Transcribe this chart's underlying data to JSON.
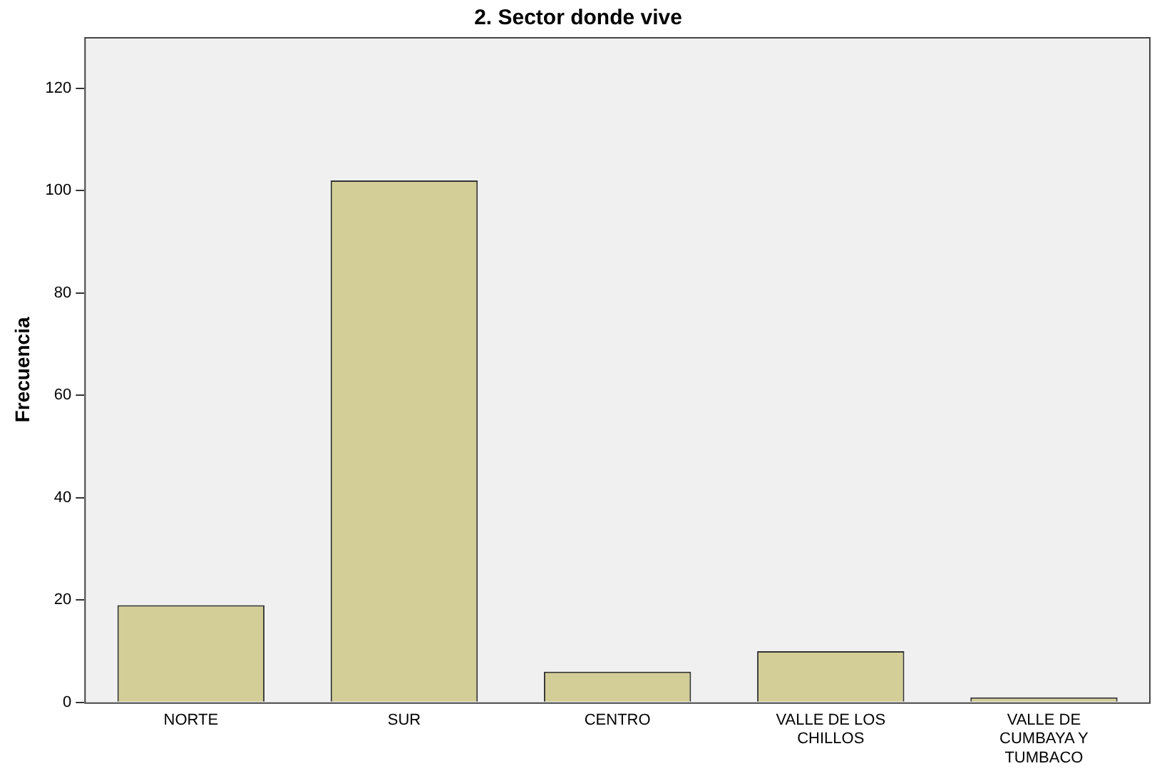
{
  "chart_data": {
    "type": "bar",
    "title": "2. Sector donde vive",
    "ylabel": "Frecuencia",
    "categories": [
      "NORTE",
      "SUR",
      "CENTRO",
      "VALLE DE LOS CHILLOS",
      "VALLE DE CUMBAYA Y TUMBACO"
    ],
    "values": [
      19,
      102,
      6,
      10,
      1
    ],
    "color": "#d3ce97",
    "ylim": [
      0,
      130
    ],
    "yticks": [
      0,
      20,
      40,
      60,
      80,
      100,
      120
    ],
    "grid": false
  }
}
